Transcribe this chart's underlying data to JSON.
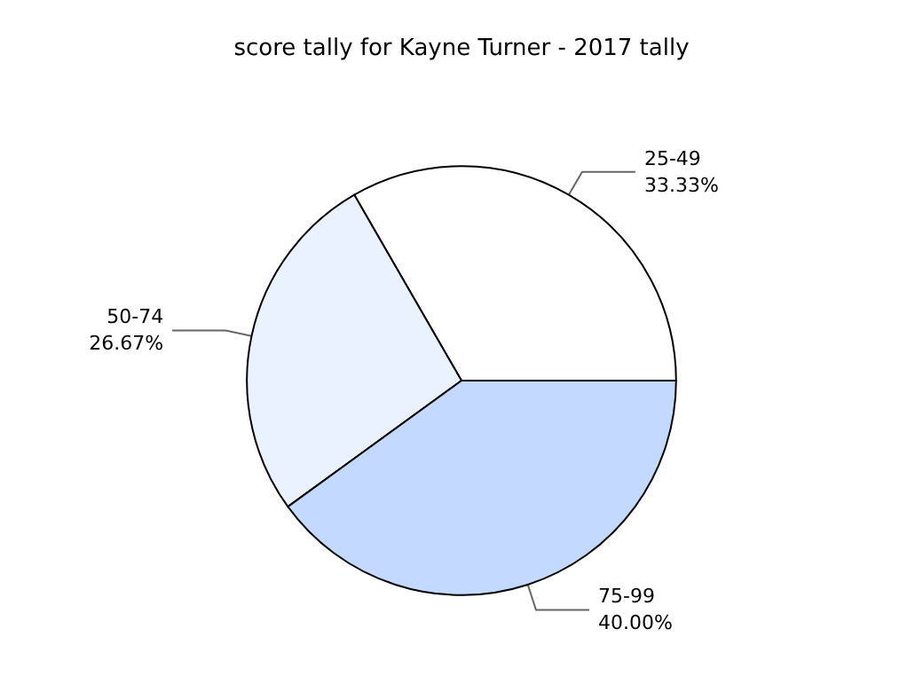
{
  "chart_data": {
    "type": "pie",
    "title": "score tally for Kayne Turner - 2017 tally",
    "categories": [
      "25-49",
      "50-74",
      "75-99"
    ],
    "values": [
      33.33,
      26.67,
      40.0
    ],
    "value_labels": [
      "33.33%",
      "26.67%",
      "40.00%"
    ],
    "colors": [
      "#ffffff",
      "#ebf2ff",
      "#c4d9ff"
    ],
    "legend": false
  }
}
